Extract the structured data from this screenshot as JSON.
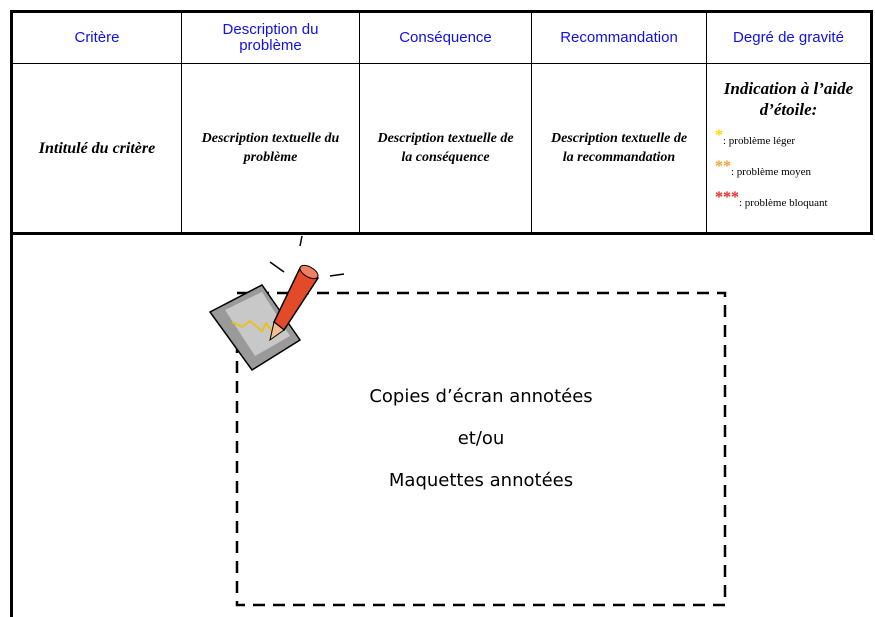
{
  "table": {
    "headers": [
      "Critère",
      "Description du problème",
      "Conséquence",
      "Recommandation",
      "Degré de gravité"
    ],
    "rows": [
      [
        "Intitulé du critère",
        "Description textuelle du problème",
        "Description textuelle de la conséquence",
        "Description textuelle de la recommandation"
      ]
    ],
    "severity": {
      "title": "Indication à l’aide d’étoile:",
      "levels": [
        {
          "stars": "*",
          "label": ": problème léger"
        },
        {
          "stars": "**",
          "label": ": problème moyen"
        },
        {
          "stars": "***",
          "label": ": problème bloquant"
        }
      ]
    }
  },
  "annotation": {
    "lines": [
      "Copies d’écran annotées",
      "et/ou",
      "Maquettes annotées"
    ]
  }
}
